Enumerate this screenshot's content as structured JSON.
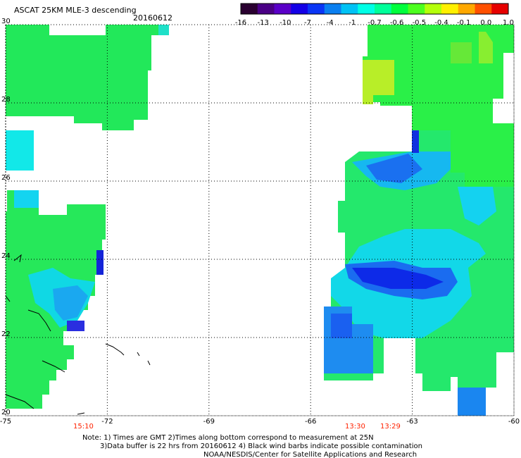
{
  "header": {
    "title": "ASCAT 25KM MLE-3 descending",
    "date": "20160612"
  },
  "colorbar": {
    "colors": [
      "#2a0030",
      "#4a0085",
      "#5a00c8",
      "#1400e6",
      "#0a35f5",
      "#0a7ff0",
      "#00c2f5",
      "#00ffe6",
      "#00ff9a",
      "#00ff3c",
      "#4cff1e",
      "#b4ff0a",
      "#fff000",
      "#ffa800",
      "#ff5000",
      "#e60000"
    ],
    "labels": [
      "-16",
      "-13",
      "-10",
      "-7",
      "-4",
      "-1",
      "-0.7",
      "-0.6",
      "-0.5",
      "-0.4",
      "-0.1",
      "0.0",
      "1.0"
    ]
  },
  "map": {
    "lon_range": [
      -75,
      -60
    ],
    "lat_range": [
      20,
      30
    ],
    "lon_ticks": [
      "-75",
      "-72",
      "-69",
      "-66",
      "-63",
      "-60"
    ],
    "lat_ticks": [
      "30",
      "28",
      "26",
      "24",
      "22",
      "20"
    ]
  },
  "pass_times": [
    "15:10",
    "13:30",
    "13:29"
  ],
  "notes": {
    "line1": "Note: 1) Times are GMT 2)Times along bottom correspond to measurement at 25N",
    "line2": "3)Data buffer is 22 hrs from 20160612 4) Black wind barbs indicate possible contamination",
    "line3": "NOAA/NESDIS/Center for Satellite Applications and Research"
  }
}
